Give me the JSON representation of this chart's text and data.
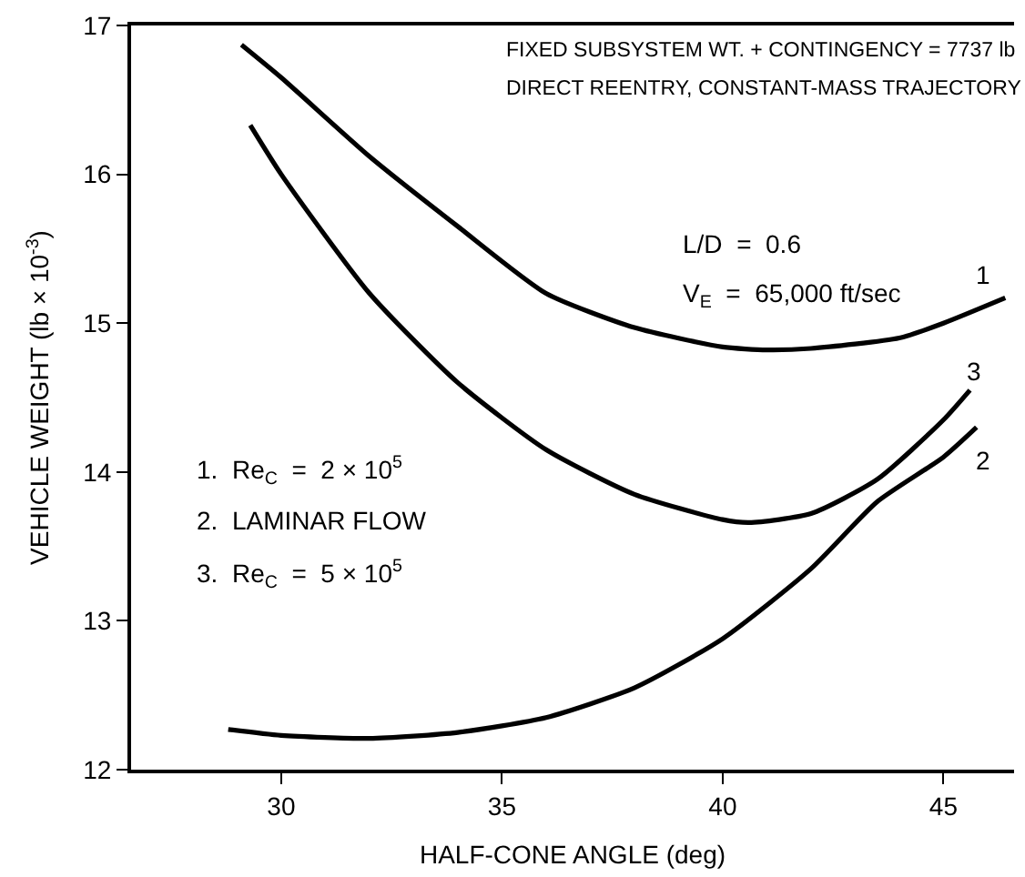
{
  "chart_data": {
    "type": "line",
    "xlabel": "HALF-CONE ANGLE (deg)",
    "ylabel": "VEHICLE WEIGHT (lb × 10$^{-3}$)",
    "xlim": [
      26.6,
      46.6
    ],
    "xticks": [
      30,
      35,
      40,
      45
    ],
    "ylim": [
      12,
      17
    ],
    "yticks": [
      12,
      13,
      14,
      15,
      16,
      17
    ],
    "marker": "none",
    "line_style": "solid",
    "series": [
      {
        "color": "#000000",
        "x": [
          29.1,
          30,
          32,
          34,
          36,
          38,
          40,
          41,
          42,
          44,
          45,
          46.4
        ],
        "values": [
          16.87,
          16.65,
          16.12,
          15.65,
          15.2,
          14.97,
          14.84,
          14.82,
          14.83,
          14.9,
          15.0,
          15.17
        ]
      },
      {
        "color": "#000000",
        "x": [
          28.8,
          30,
          32,
          34,
          36,
          38,
          40,
          42,
          43.5,
          45,
          45.75
        ],
        "values": [
          12.27,
          12.23,
          12.21,
          12.25,
          12.35,
          12.55,
          12.88,
          13.35,
          13.8,
          14.1,
          14.3
        ]
      },
      {
        "color": "#000000",
        "x": [
          29.3,
          30,
          32,
          34,
          36,
          38,
          40,
          40.6,
          42,
          43.5,
          45,
          45.6
        ],
        "values": [
          16.33,
          16.0,
          15.2,
          14.6,
          14.15,
          13.85,
          13.68,
          13.66,
          13.72,
          13.95,
          14.35,
          14.55
        ]
      }
    ],
    "annotations": [
      "FIXED SUBSYSTEM WT. + CONTINGENCY = 7737 lb",
      "DIRECT REENTRY, CONSTANT-MASS TRAJECTORY",
      "L/D  =  0.6",
      "V$_{E}$  =  65,000 ft/sec",
      "1.  Re$_{C}$  =  2 × 10$^{5}$",
      "2.  LAMINAR FLOW",
      "3.  Re$_{C}$  =  5 × 10$^{5}$",
      "1",
      "3",
      "2"
    ]
  }
}
